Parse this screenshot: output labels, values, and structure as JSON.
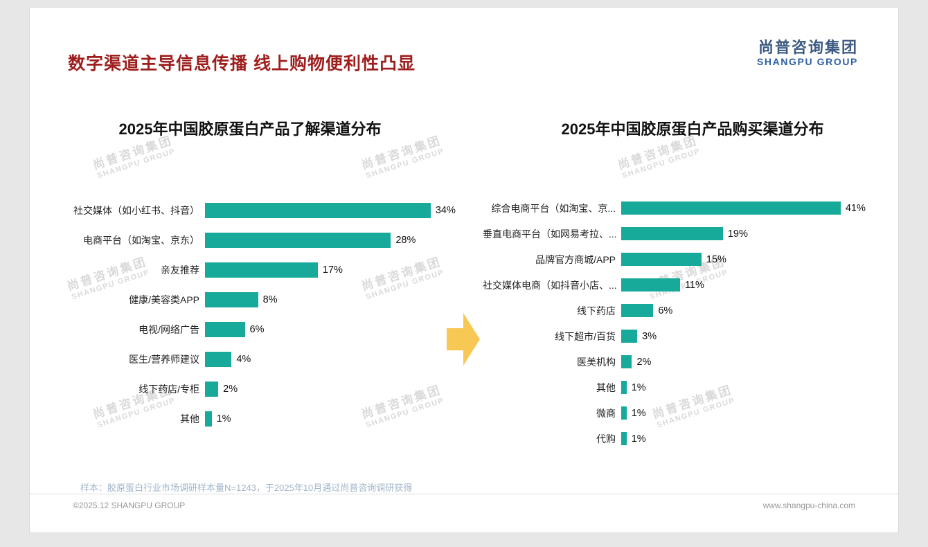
{
  "page": {
    "title": "数字渠道主导信息传播 线上购物便利性凸显",
    "logo": {
      "cn": "尚普咨询集团",
      "en": "SHANGPU GROUP"
    },
    "watermark": {
      "cn": "尚普咨询集团",
      "en": "SHANGPU GROUP"
    },
    "footnote": "样本：胶原蛋白行业市场调研样本量N=1243，于2025年10月通过尚普咨询调研获得",
    "footer_left": "©2025.12 SHANGPU GROUP",
    "footer_right": "www.shangpu-china.com"
  },
  "colors": {
    "bar": "#17a99a",
    "arrow": "#f8c855",
    "title_red": "#9e1e1e",
    "logo_cn_blue": "#3c5a82",
    "logo_en_blue": "#2e5fa3",
    "watermark_gray": "#d9d9d9",
    "footnote_blue": "#9fb5cb"
  },
  "chart_data": [
    {
      "type": "bar",
      "orientation": "horizontal",
      "title": "2025年中国胶原蛋白产品了解渠道分布",
      "categories": [
        "社交媒体（如小红书、抖音）",
        "电商平台（如淘宝、京东）",
        "亲友推荐",
        "健康/美容类APP",
        "电视/网络广告",
        "医生/营养师建议",
        "线下药店/专柜",
        "其他"
      ],
      "values": [
        34,
        28,
        17,
        8,
        6,
        4,
        2,
        1
      ],
      "unit": "%",
      "xlim": [
        0,
        36
      ],
      "grid": false,
      "legend": false
    },
    {
      "type": "bar",
      "orientation": "horizontal",
      "title": "2025年中国胶原蛋白产品购买渠道分布",
      "categories": [
        "综合电商平台（如淘宝、京...",
        "垂直电商平台（如网易考拉、...",
        "品牌官方商城/APP",
        "社交媒体电商（如抖音小店、...",
        "线下药店",
        "线下超市/百货",
        "医美机构",
        "其他",
        "微商",
        "代购"
      ],
      "values": [
        41,
        19,
        15,
        11,
        6,
        3,
        2,
        1,
        1,
        1
      ],
      "unit": "%",
      "xlim": [
        0,
        44
      ],
      "grid": false,
      "legend": false
    }
  ]
}
